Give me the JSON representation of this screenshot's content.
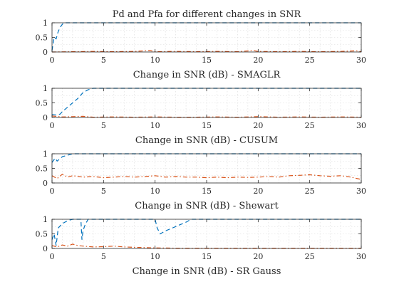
{
  "figure": {
    "title": "Pd and Pfa for different changes in SNR"
  },
  "colors": {
    "pd": "#0072BD",
    "pfa": "#D95319"
  },
  "chart_data": [
    {
      "type": "line",
      "xlabel": "Change in SNR (dB) - SMAGLR",
      "xlim": [
        0,
        30
      ],
      "ylim": [
        0,
        1
      ],
      "xticks": [
        "0",
        "5",
        "10",
        "15",
        "20",
        "25",
        "30"
      ],
      "yticks": [
        "0",
        "0.5",
        "1"
      ],
      "grid": true,
      "series": [
        {
          "x": [
            0,
            0.2,
            0.4,
            0.6,
            0.8,
            1.0,
            1.2,
            30
          ],
          "values": [
            0.05,
            0.5,
            0.45,
            0.7,
            0.85,
            0.95,
            1,
            1
          ],
          "line_style": "dashed"
        },
        {
          "x": [
            0,
            2,
            4,
            6,
            8,
            9.5,
            10,
            12,
            14,
            16,
            18,
            19.5,
            20,
            22,
            24,
            26,
            28,
            29.5,
            30
          ],
          "values": [
            0,
            0.01,
            0.02,
            0.01,
            0.02,
            0.05,
            0.01,
            0.02,
            0.01,
            0.02,
            0.01,
            0.05,
            0.02,
            0.01,
            0.02,
            0.01,
            0.02,
            0.04,
            0.01
          ],
          "line_style": "dashdot"
        }
      ]
    },
    {
      "type": "line",
      "xlabel": "Change in SNR (dB) - CUSUM",
      "xlim": [
        0,
        30
      ],
      "ylim": [
        0,
        1
      ],
      "xticks": [
        "0",
        "5",
        "10",
        "15",
        "20",
        "25",
        "30"
      ],
      "yticks": [
        "0",
        "0.5",
        "1"
      ],
      "grid": true,
      "series": [
        {
          "x": [
            0,
            0.5,
            0.8,
            1.0,
            1.5,
            2.0,
            2.5,
            3.0,
            3.5,
            4.0,
            30
          ],
          "values": [
            0.1,
            0.08,
            0.12,
            0.2,
            0.35,
            0.5,
            0.65,
            0.85,
            0.95,
            1,
            1
          ],
          "line_style": "dashed"
        },
        {
          "x": [
            0,
            1,
            2,
            3,
            4,
            6,
            8,
            10,
            12,
            14,
            16,
            18,
            20,
            22,
            24,
            26,
            28,
            30
          ],
          "values": [
            0.05,
            0.02,
            0.03,
            0.04,
            0.01,
            0.02,
            0.01,
            0.02,
            0.01,
            0.01,
            0.02,
            0.01,
            0.03,
            0.01,
            0.02,
            0.01,
            0.02,
            0.01
          ],
          "line_style": "dashdot"
        }
      ]
    },
    {
      "type": "line",
      "xlabel": "Change in SNR (dB) - Shewart",
      "xlim": [
        0,
        30
      ],
      "ylim": [
        0,
        1
      ],
      "xticks": [
        "0",
        "5",
        "10",
        "15",
        "20",
        "25",
        "30"
      ],
      "yticks": [
        "0",
        "0.5",
        "1"
      ],
      "grid": true,
      "series": [
        {
          "x": [
            0,
            0.3,
            0.5,
            1.0,
            1.5,
            2.0,
            30
          ],
          "values": [
            0.7,
            0.85,
            0.75,
            0.9,
            0.95,
            1,
            1
          ],
          "line_style": "dashed"
        },
        {
          "x": [
            0,
            0.5,
            1,
            1.5,
            2,
            3,
            4,
            5,
            6,
            7,
            8,
            9,
            10,
            11,
            12,
            13,
            14,
            15,
            16,
            17,
            18,
            19,
            20,
            21,
            22,
            23,
            24,
            25,
            26,
            27,
            28,
            29,
            30
          ],
          "values": [
            0.25,
            0.15,
            0.3,
            0.2,
            0.25,
            0.2,
            0.22,
            0.18,
            0.2,
            0.22,
            0.2,
            0.22,
            0.25,
            0.2,
            0.22,
            0.2,
            0.2,
            0.18,
            0.2,
            0.18,
            0.2,
            0.19,
            0.2,
            0.22,
            0.2,
            0.25,
            0.26,
            0.28,
            0.25,
            0.23,
            0.25,
            0.2,
            0.12
          ],
          "line_style": "dashdot"
        }
      ]
    },
    {
      "type": "line",
      "xlabel": "Change in SNR (dB) - SR Gauss",
      "xlim": [
        0,
        30
      ],
      "ylim": [
        0,
        1
      ],
      "xticks": [
        "0",
        "5",
        "10",
        "15",
        "20",
        "25",
        "30"
      ],
      "yticks": [
        "0",
        "0.5",
        "1"
      ],
      "grid": true,
      "series": [
        {
          "x": [
            0,
            0.2,
            0.4,
            0.6,
            1.0,
            1.5,
            2.0,
            2.5,
            2.8,
            2.9,
            3.0,
            3.2,
            3.5,
            10.0,
            10.2,
            10.5,
            11,
            12,
            13,
            13.5,
            30
          ],
          "values": [
            0.3,
            0.5,
            0.1,
            0.7,
            0.85,
            0.95,
            1,
            1,
            1,
            0.3,
            0.6,
            0.8,
            1,
            1,
            0.7,
            0.5,
            0.6,
            0.75,
            0.9,
            1,
            1
          ],
          "line_style": "dashed"
        },
        {
          "x": [
            0,
            0.5,
            1,
            1.5,
            2,
            2.5,
            3,
            4,
            5,
            6,
            7,
            8,
            9,
            10,
            12,
            14,
            16,
            18,
            20,
            22,
            24,
            26,
            28,
            30
          ],
          "values": [
            0.1,
            0.05,
            0.12,
            0.08,
            0.15,
            0.1,
            0.08,
            0.05,
            0.06,
            0.08,
            0.05,
            0.04,
            0.03,
            0.02,
            0.01,
            0.01,
            0.01,
            0.01,
            0.01,
            0.01,
            0.01,
            0.01,
            0.01,
            0.01
          ],
          "line_style": "dashdot"
        }
      ]
    }
  ]
}
